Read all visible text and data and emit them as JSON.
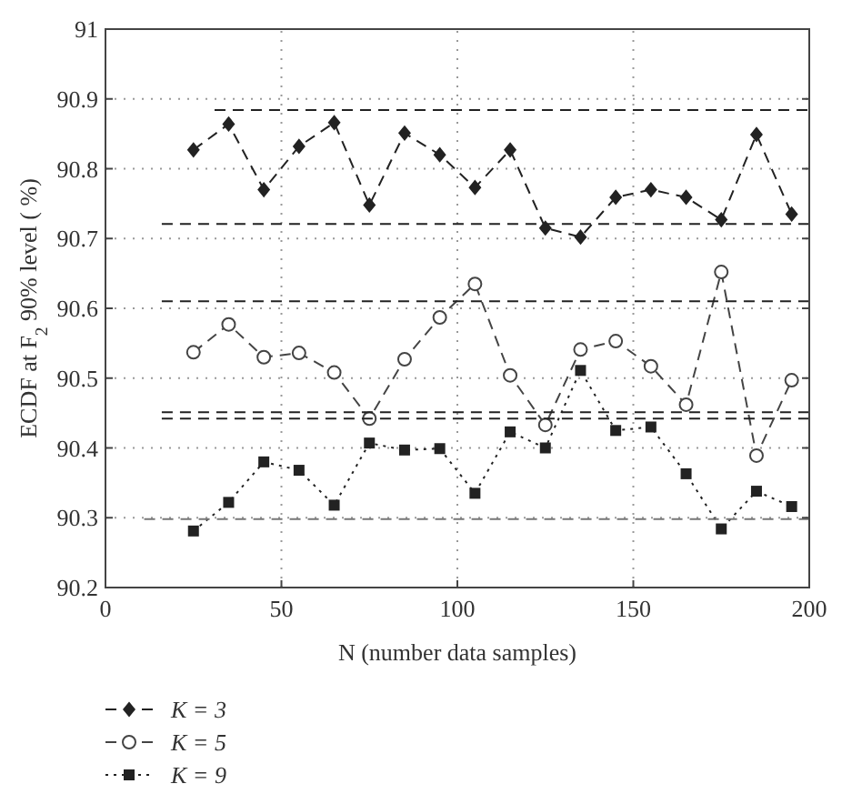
{
  "chart_data": {
    "type": "line",
    "xlabel": "N (number data samples)",
    "ylabel": "ECDF at F$_{2}$ 90% level ( %)",
    "x": [
      25,
      35,
      45,
      55,
      65,
      75,
      85,
      95,
      105,
      115,
      125,
      135,
      145,
      155,
      165,
      175,
      185,
      195
    ],
    "series": [
      {
        "name": "K = 3",
        "color": "#222222",
        "marker": "diamond",
        "line_style": "dashed",
        "values": [
          90.827,
          90.864,
          90.77,
          90.832,
          90.866,
          90.748,
          90.851,
          90.82,
          90.773,
          90.827,
          90.715,
          90.702,
          90.759,
          90.77,
          90.759,
          90.727,
          90.849,
          90.735
        ]
      },
      {
        "name": "K = 5",
        "color": "#444444",
        "marker": "circle",
        "line_style": "dashed",
        "values": [
          90.537,
          90.577,
          90.53,
          90.536,
          90.508,
          90.442,
          90.527,
          90.587,
          90.635,
          90.504,
          90.433,
          90.541,
          90.553,
          90.517,
          90.462,
          90.652,
          90.389,
          90.497
        ]
      },
      {
        "name": "K = 9",
        "color": "#222222",
        "marker": "square",
        "line_style": "dotted",
        "values": [
          90.281,
          90.322,
          90.38,
          90.368,
          90.318,
          90.407,
          90.397,
          90.399,
          90.335,
          90.423,
          90.4,
          90.511,
          90.425,
          90.43,
          90.363,
          90.284,
          90.338,
          90.316
        ]
      },
      {
        "color": "#222222",
        "marker": "none",
        "line_style": "dashed",
        "x": [
          31,
          200
        ],
        "values": [
          90.884,
          90.884
        ]
      },
      {
        "color": "#222222",
        "marker": "none",
        "line_style": "dashed",
        "x": [
          16,
          200
        ],
        "values": [
          90.721,
          90.721
        ]
      },
      {
        "color": "#222222",
        "marker": "none",
        "line_style": "dashed",
        "x": [
          16,
          200
        ],
        "values": [
          90.61,
          90.61
        ]
      },
      {
        "color": "#222222",
        "marker": "none",
        "line_style": "dashed",
        "x": [
          16,
          200
        ],
        "values": [
          90.451,
          90.451
        ]
      },
      {
        "color": "#222222",
        "marker": "none",
        "line_style": "dashed",
        "x": [
          16,
          200
        ],
        "values": [
          90.442,
          90.442
        ]
      },
      {
        "color": "#777777",
        "marker": "none",
        "line_style": "dashed",
        "x": [
          11,
          200
        ],
        "values": [
          90.298,
          90.298
        ]
      }
    ],
    "xlim": [
      0,
      200
    ],
    "xticks": [
      0,
      50,
      100,
      150,
      200
    ],
    "ylim": [
      90.2,
      91
    ],
    "yticks": [
      90.2,
      90.3,
      90.4,
      90.5,
      90.6,
      90.7,
      90.8,
      90.9,
      91
    ],
    "grid": true,
    "legend": "bottom"
  }
}
